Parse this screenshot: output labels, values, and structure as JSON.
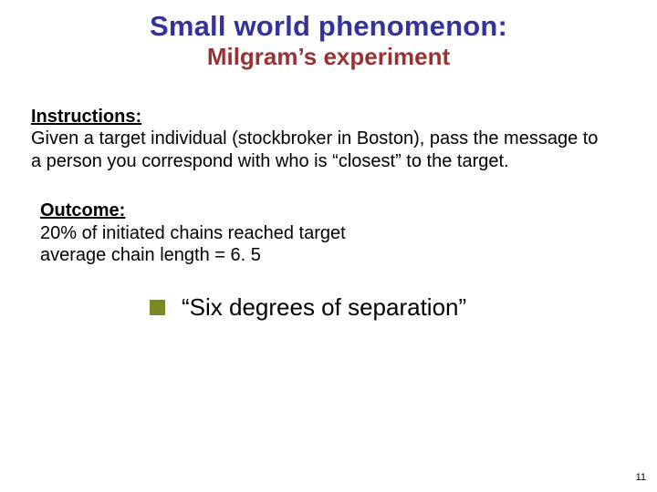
{
  "colors": {
    "title_main": "#333399",
    "title_sub": "#993333",
    "bullet": "#7d8a24",
    "text": "#000000",
    "background": "#ffffff"
  },
  "title": {
    "main": "Small world phenomenon:",
    "sub": "Milgram’s experiment"
  },
  "instructions": {
    "heading": "Instructions:",
    "body": "Given a target individual (stockbroker in Boston), pass the message to a person you correspond with who is “closest” to the target."
  },
  "outcome": {
    "heading": "Outcome:",
    "line1": "20% of initiated chains reached target",
    "line2": "average chain length = 6. 5"
  },
  "bullet": "“Six degrees of separation”",
  "page_number": "11"
}
